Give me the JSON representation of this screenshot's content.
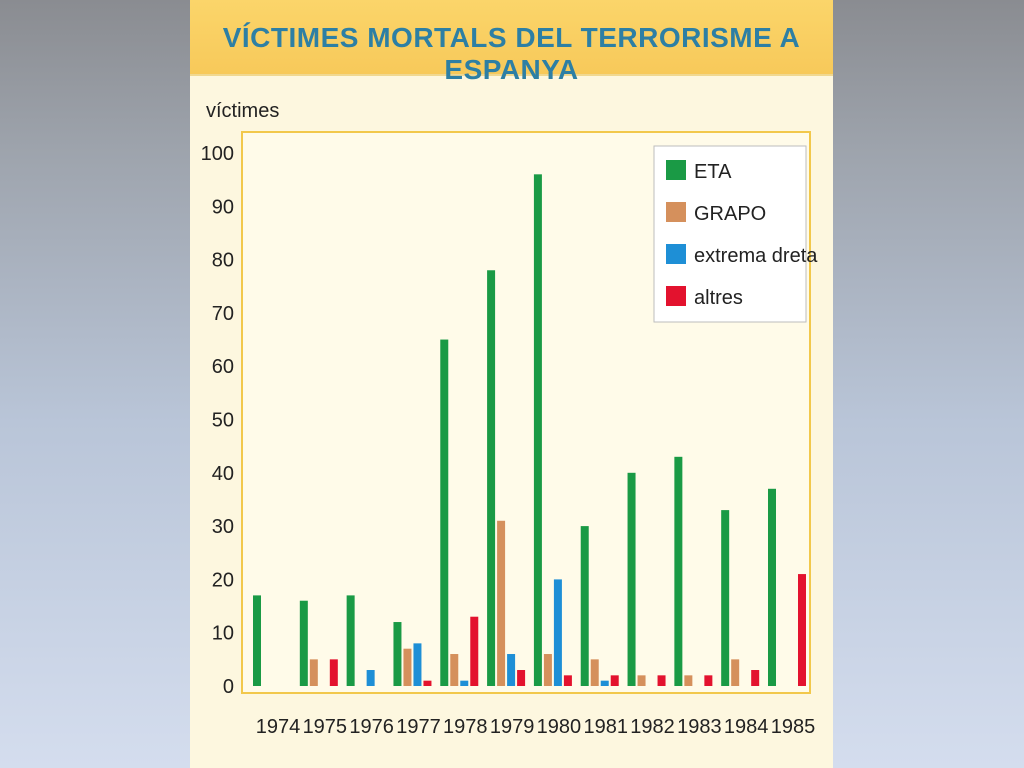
{
  "title": "VÍCTIMES MORTALS DEL TERRORISME A ESPANYA",
  "chart_data": {
    "type": "bar",
    "title": "VÍCTIMES MORTALS DEL TERRORISME A ESPANYA",
    "ylabel": "víctimes",
    "xlabel": "",
    "ylim": [
      0,
      100
    ],
    "yticks": [
      0,
      10,
      20,
      30,
      40,
      50,
      60,
      70,
      80,
      90,
      100
    ],
    "grid": true,
    "legend_position": "top-right",
    "categories": [
      "1974",
      "1975",
      "1976",
      "1977",
      "1978",
      "1979",
      "1980",
      "1981",
      "1982",
      "1983",
      "1984",
      "1985"
    ],
    "series": [
      {
        "name": "ETA",
        "color": "#1a9a45",
        "values": [
          17,
          16,
          17,
          12,
          65,
          78,
          96,
          30,
          40,
          43,
          33,
          37
        ]
      },
      {
        "name": "GRAPO",
        "color": "#d5905c",
        "values": [
          0,
          5,
          0,
          7,
          6,
          31,
          6,
          5,
          2,
          2,
          5,
          0
        ]
      },
      {
        "name": "extrema dreta",
        "color": "#1e8fd6",
        "values": [
          0,
          0,
          3,
          8,
          1,
          6,
          20,
          1,
          0,
          0,
          0,
          0
        ]
      },
      {
        "name": "altres",
        "color": "#e3122e",
        "values": [
          0,
          5,
          0,
          1,
          13,
          3,
          2,
          2,
          2,
          2,
          3,
          21
        ]
      }
    ]
  }
}
